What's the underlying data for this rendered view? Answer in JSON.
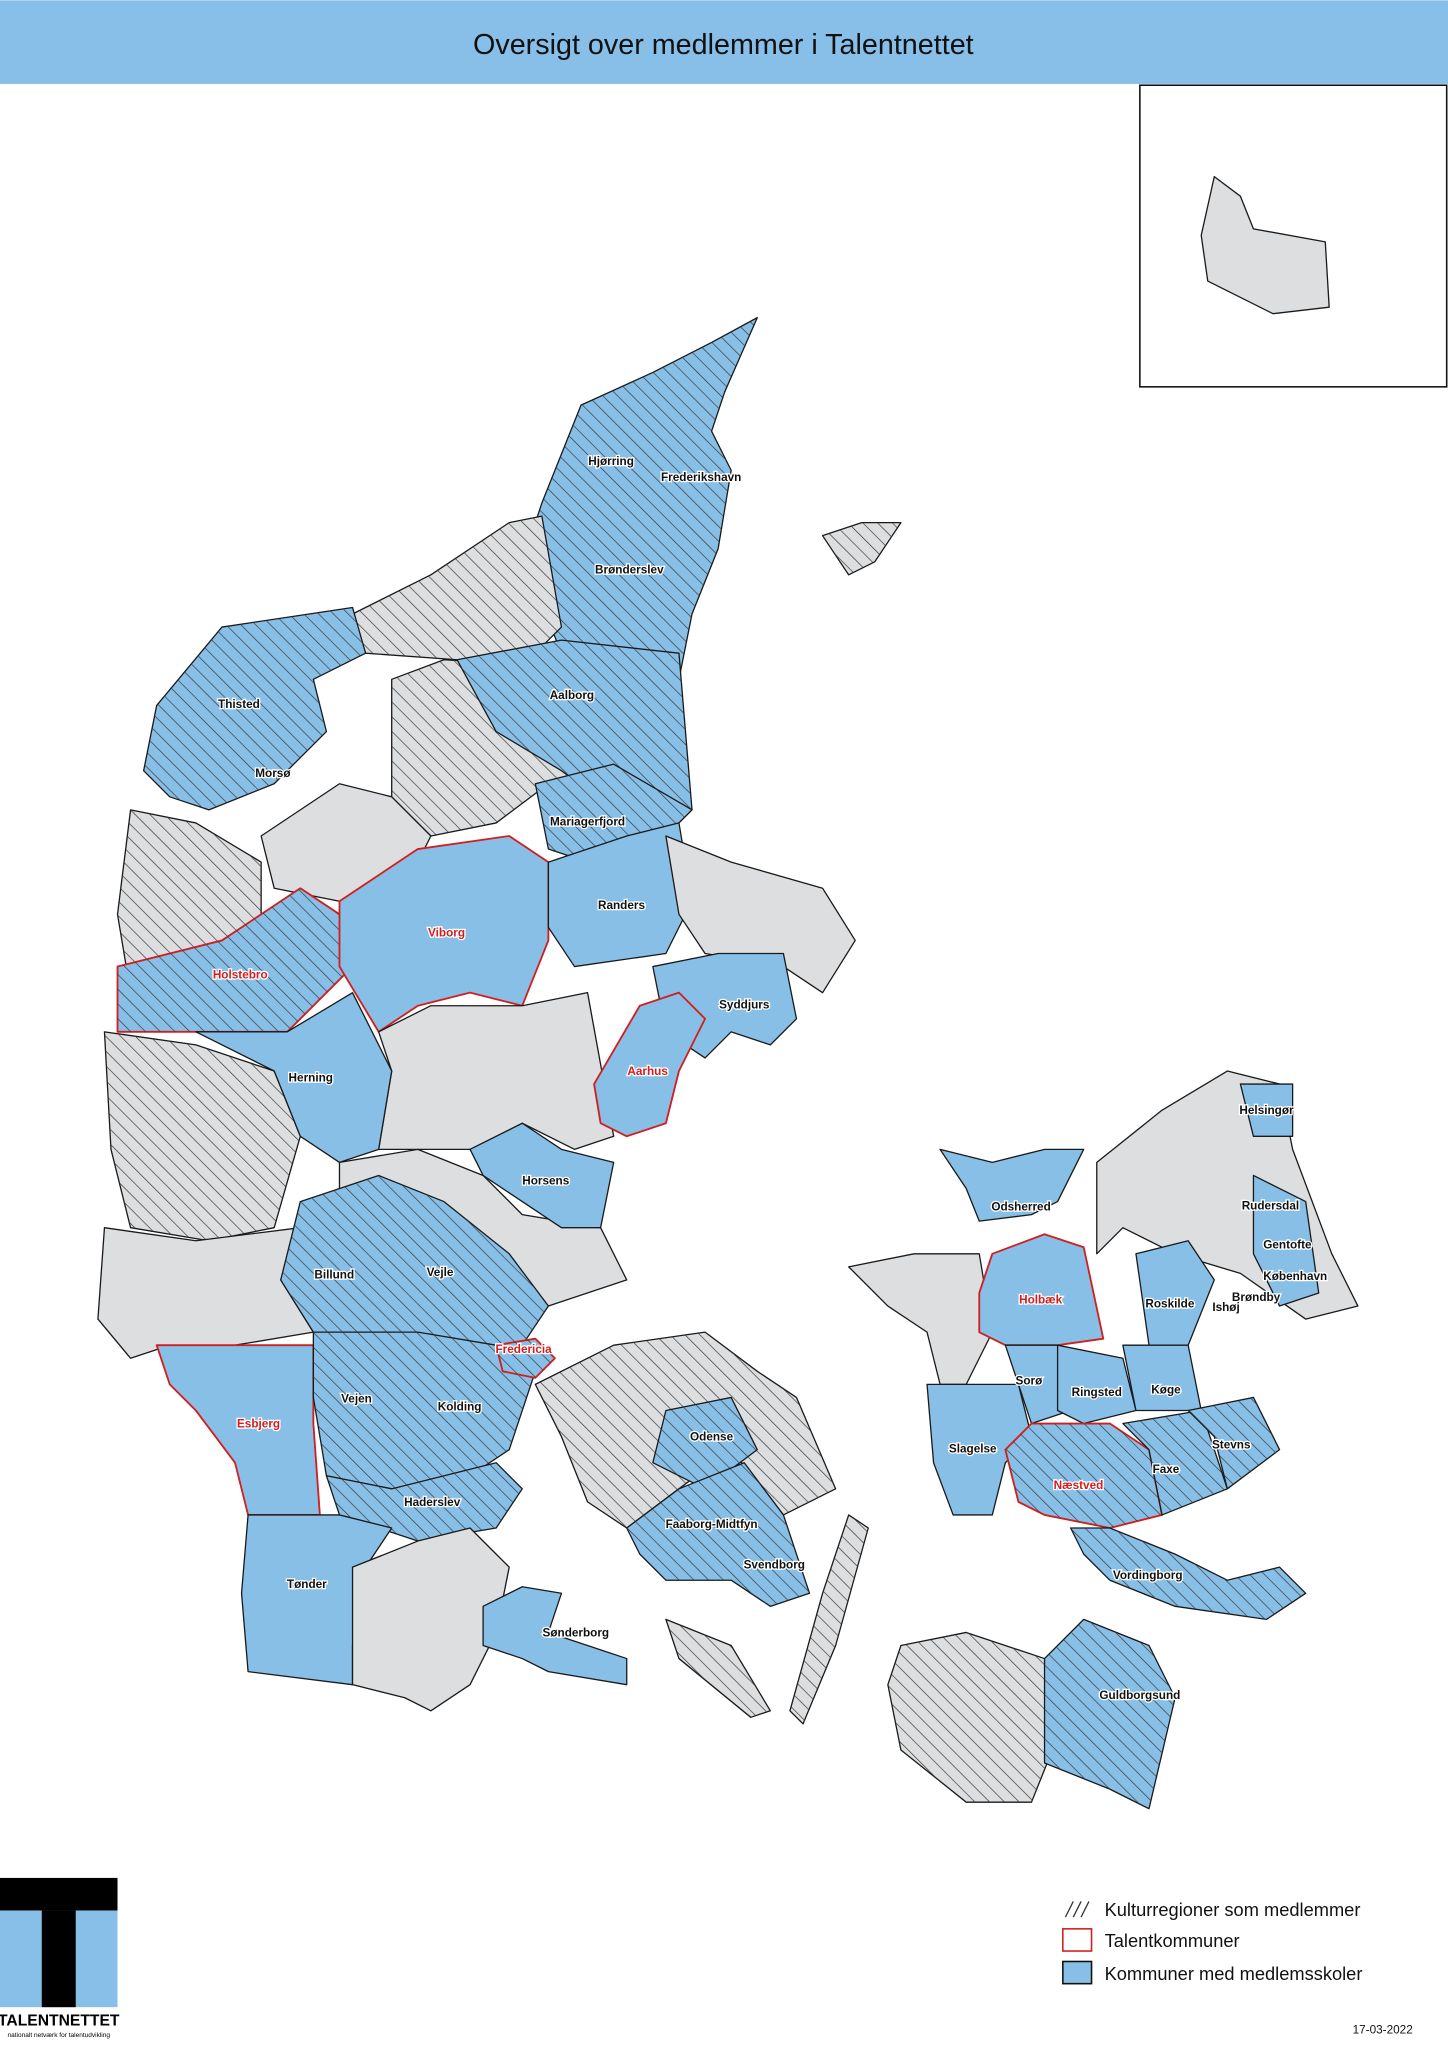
{
  "header": {
    "title": "Oversigt over medlemmer i Talentnettet"
  },
  "colors": {
    "member_schools": "#87bfe7",
    "other": "#dcdee0",
    "talent_outline": "#d21e1e",
    "title_bar": "#88bfe8"
  },
  "legend": {
    "culture_regions": "Kulturregioner som medlemmer",
    "talent_municipalities": "Talentkommuner",
    "member_schools": "Kommuner med medlemsskoler"
  },
  "logo": {
    "name": "TALENTNETTET",
    "tagline": "nationalt netværk for talentudvikling"
  },
  "date": "17-03-2022",
  "labels": [
    {
      "name": "Hjørring",
      "talent": false
    },
    {
      "name": "Frederikshavn",
      "talent": false
    },
    {
      "name": "Brønderslev",
      "talent": false
    },
    {
      "name": "Thisted",
      "talent": false
    },
    {
      "name": "Aalborg",
      "talent": false
    },
    {
      "name": "Morsø",
      "talent": false
    },
    {
      "name": "Mariagerfjord",
      "talent": false
    },
    {
      "name": "Randers",
      "talent": false
    },
    {
      "name": "Viborg",
      "talent": true
    },
    {
      "name": "Holstebro",
      "talent": true
    },
    {
      "name": "Syddjurs",
      "talent": false
    },
    {
      "name": "Aarhus",
      "talent": true
    },
    {
      "name": "Herning",
      "talent": false
    },
    {
      "name": "Horsens",
      "talent": false
    },
    {
      "name": "Odsherred",
      "talent": false
    },
    {
      "name": "Helsingør",
      "talent": false
    },
    {
      "name": "Rudersdal",
      "talent": false
    },
    {
      "name": "Gentofte",
      "talent": false
    },
    {
      "name": "København",
      "talent": false
    },
    {
      "name": "Billund",
      "talent": false
    },
    {
      "name": "Vejle",
      "talent": false
    },
    {
      "name": "Holbæk",
      "talent": true
    },
    {
      "name": "Roskilde",
      "talent": false
    },
    {
      "name": "Ishøj",
      "talent": false
    },
    {
      "name": "Brøndby",
      "talent": false
    },
    {
      "name": "Fredericia",
      "talent": true
    },
    {
      "name": "Sorø",
      "talent": false
    },
    {
      "name": "Ringsted",
      "talent": false
    },
    {
      "name": "Køge",
      "talent": false
    },
    {
      "name": "Esbjerg",
      "talent": true
    },
    {
      "name": "Vejen",
      "talent": false
    },
    {
      "name": "Kolding",
      "talent": false
    },
    {
      "name": "Odense",
      "talent": false
    },
    {
      "name": "Slagelse",
      "talent": false
    },
    {
      "name": "Stevns",
      "talent": false
    },
    {
      "name": "Næstved",
      "talent": true
    },
    {
      "name": "Faxe",
      "talent": false
    },
    {
      "name": "Haderslev",
      "talent": false
    },
    {
      "name": "Faaborg-Midtfyn",
      "talent": false
    },
    {
      "name": "Svendborg",
      "talent": false
    },
    {
      "name": "Vordingborg",
      "talent": false
    },
    {
      "name": "Tønder",
      "talent": false
    },
    {
      "name": "Sønderborg",
      "talent": false
    },
    {
      "name": "Guldborgsund",
      "talent": false
    }
  ]
}
